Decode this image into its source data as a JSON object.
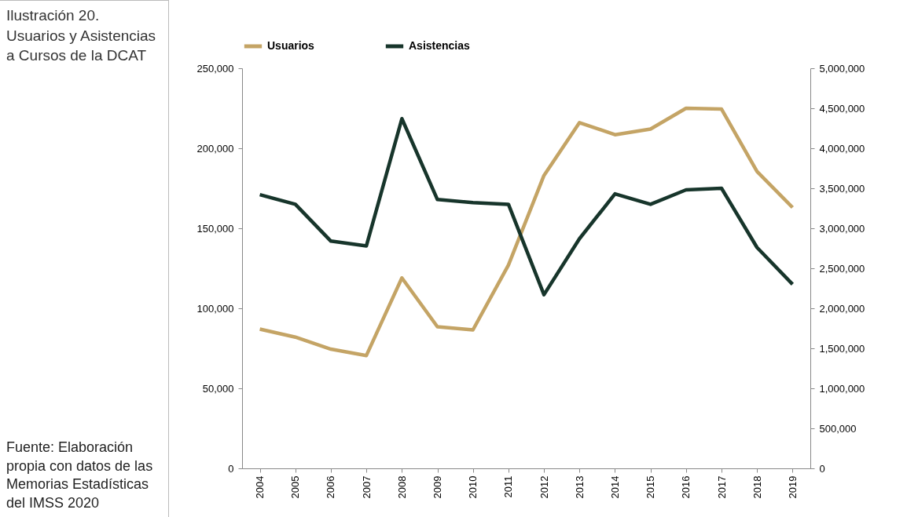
{
  "chart_data": {
    "type": "line",
    "title": "Ilustración 20. Usuarios y Asistencias a Cursos de la DCAT",
    "annotations": [
      "Fuente: Elaboración propia con datos de las Memorias Estadísticas del IMSS 2020"
    ],
    "categories": [
      "2004",
      "2005",
      "2006",
      "2007",
      "2008",
      "2009",
      "2010",
      "2011",
      "2012",
      "2013",
      "2014",
      "2015",
      "2016",
      "2017",
      "2018",
      "2019"
    ],
    "series": [
      {
        "name": "Usuarios",
        "color": "#c4a465",
        "values": [
          87000,
          82000,
          74500,
          70500,
          119000,
          88500,
          86500,
          127000,
          183000,
          216000,
          208500,
          212000,
          225000,
          224500,
          185500,
          163000
        ]
      },
      {
        "name": "Asistencias",
        "color": "#17352b",
        "axis": "y2",
        "values": [
          3420000,
          3300000,
          2840000,
          2780000,
          4370000,
          3360000,
          3320000,
          3300000,
          2170000,
          2870000,
          3430000,
          3300000,
          3480000,
          3500000,
          2760000,
          2300000
        ]
      }
    ],
    "ylim": [
      0,
      250000
    ],
    "yticks": [
      0,
      {
        "value": 50000,
        "label": "50,000"
      },
      {
        "value": 100000,
        "label": "100,000"
      },
      {
        "value": 150000,
        "label": "150,000"
      },
      {
        "value": 200000,
        "label": "200,000"
      },
      {
        "value": 250000,
        "label": "250,000"
      }
    ],
    "y2lim": [
      0,
      5000000
    ],
    "y2ticks": [
      0,
      {
        "value": 500000,
        "label": "500,000"
      },
      {
        "value": 1000000,
        "label": "1,000,000"
      },
      {
        "value": 1500000,
        "label": "1,500,000"
      },
      {
        "value": 2000000,
        "label": "2,000,000"
      },
      {
        "value": 2500000,
        "label": "2,500,000"
      },
      {
        "value": 3000000,
        "label": "3,000,000"
      },
      {
        "value": 3500000,
        "label": "3,500,000"
      },
      {
        "value": 4000000,
        "label": "4,000,000"
      },
      {
        "value": 4500000,
        "label": "4,500,000"
      },
      {
        "value": 5000000,
        "label": "5,000,000"
      }
    ],
    "legend": "top",
    "grid": false,
    "marker": "none",
    "line_style": "solid"
  }
}
